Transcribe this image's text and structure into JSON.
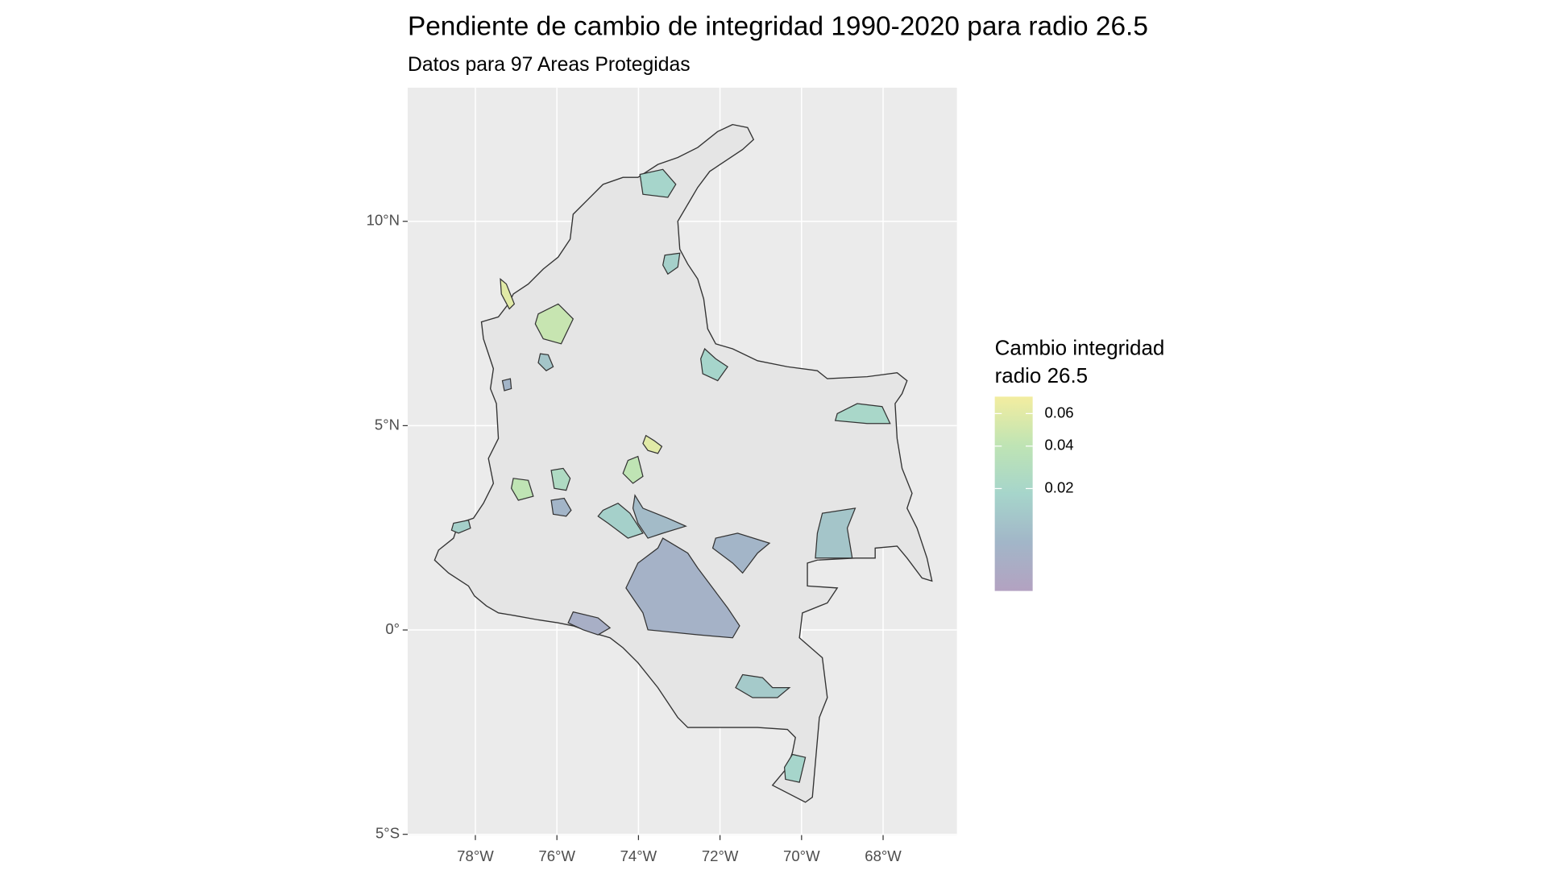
{
  "chart_data": {
    "type": "map",
    "title": "Pendiente de cambio de integridad 1990-2020 para radio 26.5",
    "subtitle": "Datos para 97 Areas Protegidas",
    "xlim": [
      -79.66,
      -66.19
    ],
    "ylim": [
      -5.02,
      13.27
    ],
    "xticks": [
      {
        "value": -78,
        "label": "78°W"
      },
      {
        "value": -76,
        "label": "76°W"
      },
      {
        "value": -74,
        "label": "74°W"
      },
      {
        "value": -72,
        "label": "72°W"
      },
      {
        "value": -70,
        "label": "70°W"
      },
      {
        "value": -68,
        "label": "68°W"
      }
    ],
    "yticks": [
      {
        "value": -5,
        "label": "5°S"
      },
      {
        "value": 0,
        "label": "0°"
      },
      {
        "value": 5,
        "label": "5°N"
      },
      {
        "value": 10,
        "label": "10°N"
      }
    ],
    "grid": true,
    "legend_title": [
      "Cambio integridad",
      "radio 26.5"
    ],
    "color_scale": "sqrt",
    "colorlim": [
      0,
      0.072
    ],
    "colorticks": [
      0.02,
      0.04,
      0.06
    ],
    "colors": [
      "#b3a2c1",
      "#a2b6c8",
      "#a6d5cb",
      "#bfe4b4",
      "#f3eda0"
    ],
    "values": [
      0.003,
      0.004,
      0.01,
      0.02,
      0.012,
      0.018,
      0.002,
      0.006,
      0.015,
      0.045,
      0.018,
      0.018,
      0.04,
      0.04,
      0.06,
      0.06,
      0.025,
      0.015,
      0.004,
      0.015,
      0.01,
      0.004
    ]
  }
}
